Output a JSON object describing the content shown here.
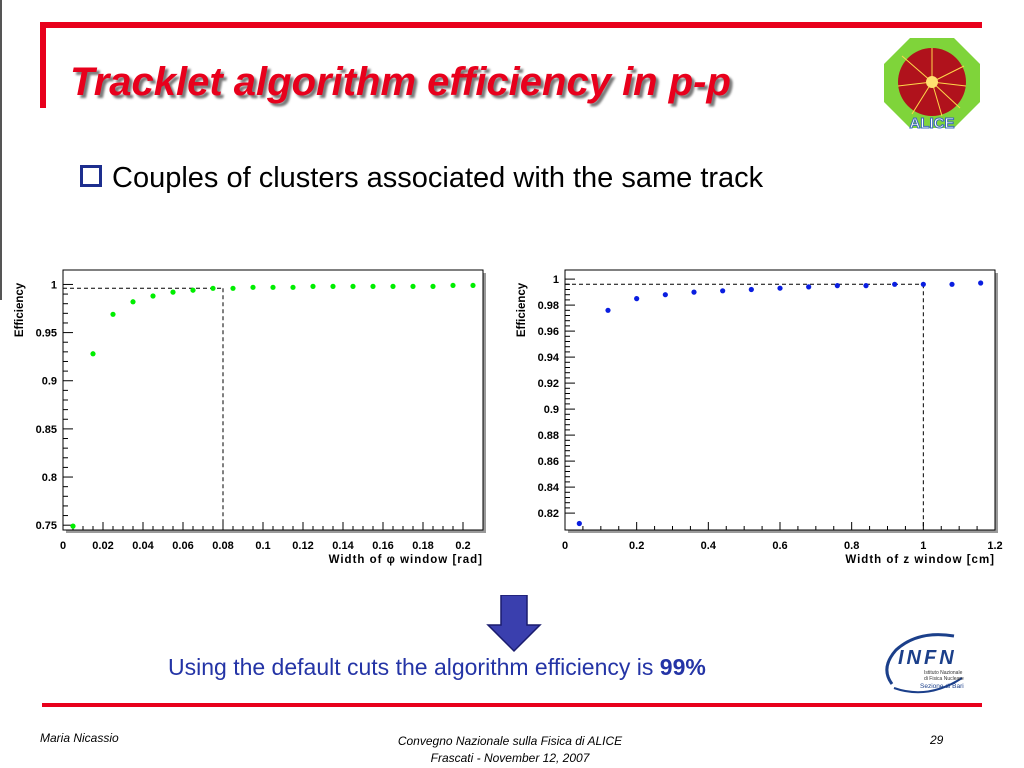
{
  "slide": {
    "title": "Tracklet algorithm efficiency in p-p",
    "bullet": "Couples of clusters associated with the same track",
    "conclusion_prefix": "Using the default cuts the algorithm efficiency is ",
    "conclusion_value": "99%",
    "footer": {
      "author": "Maria Nicassio",
      "event": "Convegno Nazionale sulla Fisica di ALICE",
      "place_date": "Frascati -  November 12, 2007",
      "page": "29"
    },
    "logos": {
      "alice_text": "ALICE",
      "infn_text": "INFN",
      "infn_sub1": "Istituto Nazionale",
      "infn_sub2": "di Fisica Nucleare",
      "infn_sub3": "Sezione di Bari"
    },
    "colors": {
      "accent": "#e8001c",
      "text_blue": "#2434a6",
      "arrow": "#3a3fae",
      "series_left": "#00ee00",
      "series_right": "#0a1ee0"
    }
  },
  "chart_data": [
    {
      "type": "scatter",
      "xlabel": "Width of φ  window [rad]",
      "ylabel": "Efficiency",
      "xlim": [
        0,
        0.21
      ],
      "ylim": [
        0.745,
        1.015
      ],
      "xticks": [
        0,
        0.02,
        0.04,
        0.06,
        0.08,
        0.1,
        0.12,
        0.14,
        0.16,
        0.18,
        0.2
      ],
      "xtick_labels": [
        "0",
        "0.02",
        "0.04",
        "0.06",
        "0.08",
        "0.1",
        "0.12",
        "0.14",
        "0.16",
        "0.18",
        "0.2"
      ],
      "yticks": [
        0.75,
        0.8,
        0.85,
        0.9,
        0.95,
        1
      ],
      "ytick_labels": [
        "0.75",
        "0.8",
        "0.85",
        "0.9",
        "0.95",
        "1"
      ],
      "grid": false,
      "reference_line": {
        "x": 0.08,
        "y": 0.996
      },
      "series": [
        {
          "x": [
            0.005,
            0.015,
            0.025,
            0.035,
            0.045,
            0.055,
            0.065,
            0.075,
            0.085,
            0.095,
            0.105,
            0.115,
            0.125,
            0.135,
            0.145,
            0.155,
            0.165,
            0.175,
            0.185,
            0.195,
            0.205
          ],
          "y": [
            0.749,
            0.928,
            0.969,
            0.982,
            0.988,
            0.992,
            0.994,
            0.996,
            0.996,
            0.997,
            0.997,
            0.997,
            0.998,
            0.998,
            0.998,
            0.998,
            0.998,
            0.998,
            0.998,
            0.999,
            0.999
          ]
        }
      ]
    },
    {
      "type": "scatter",
      "xlabel": "Width of z window [cm]",
      "ylabel": "Efficiency",
      "xlim": [
        0,
        1.2
      ],
      "ylim": [
        0.807,
        1.007
      ],
      "xticks": [
        0,
        0.2,
        0.4,
        0.6,
        0.8,
        1,
        1.2
      ],
      "xtick_labels": [
        "0",
        "0.2",
        "0.4",
        "0.6",
        "0.8",
        "1",
        "1.2"
      ],
      "yticks": [
        0.82,
        0.84,
        0.86,
        0.88,
        0.9,
        0.92,
        0.94,
        0.96,
        0.98,
        1
      ],
      "ytick_labels": [
        "0.82",
        "0.84",
        "0.86",
        "0.88",
        "0.9",
        "0.92",
        "0.94",
        "0.96",
        "0.98",
        "1"
      ],
      "grid": false,
      "reference_line": {
        "x": 1,
        "y": 0.996
      },
      "series": [
        {
          "x": [
            0.04,
            0.12,
            0.2,
            0.28,
            0.36,
            0.44,
            0.52,
            0.6,
            0.68,
            0.76,
            0.84,
            0.92,
            1.0,
            1.08,
            1.16
          ],
          "y": [
            0.812,
            0.976,
            0.985,
            0.988,
            0.99,
            0.991,
            0.992,
            0.993,
            0.994,
            0.995,
            0.995,
            0.996,
            0.996,
            0.996,
            0.997
          ]
        }
      ]
    }
  ]
}
